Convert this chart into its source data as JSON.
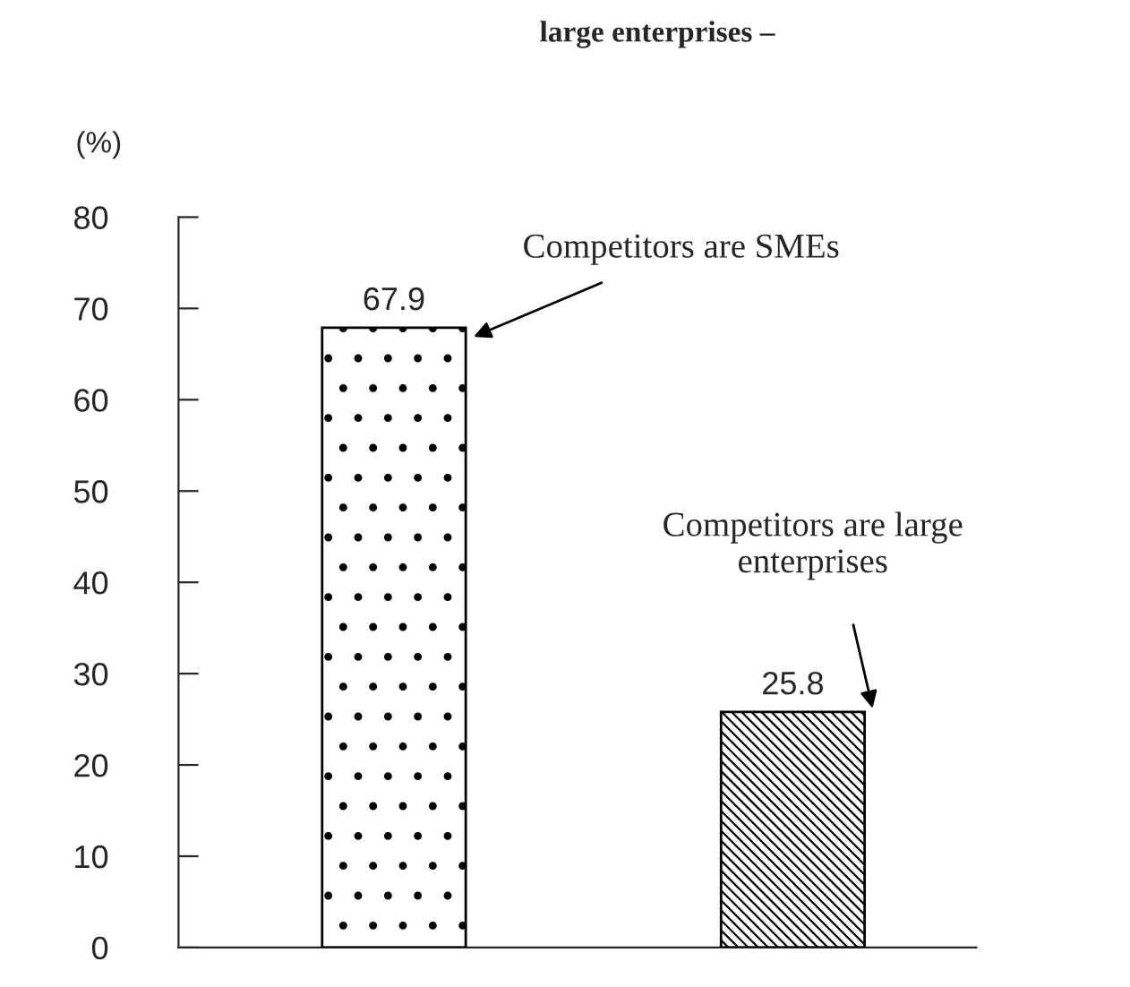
{
  "chart_data": {
    "type": "bar",
    "title": "large enterprises –",
    "ylabel": "(%)",
    "categories": [
      null,
      null
    ],
    "values": [
      67.9,
      25.8
    ],
    "colors": [
      "#ffffff",
      "#ffffff"
    ],
    "data_labels": true,
    "ylim": [
      0,
      80
    ],
    "yticks": [
      0,
      10,
      20,
      30,
      40,
      50,
      60,
      70,
      80
    ],
    "annotations": [
      "Competitors are SMEs",
      "Competitors are large\nenterprises"
    ],
    "grid": false,
    "legend": false
  }
}
